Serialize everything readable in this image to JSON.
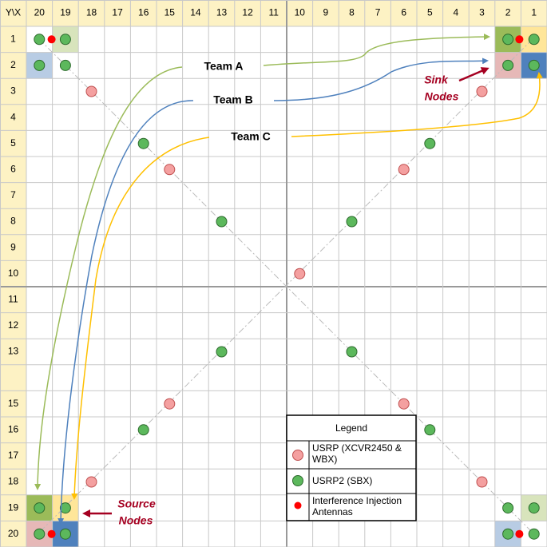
{
  "grid": {
    "corner": "Y\\X",
    "columns": [
      "20",
      "19",
      "18",
      "17",
      "16",
      "15",
      "14",
      "13",
      "12",
      "11",
      "10",
      "9",
      "8",
      "7",
      "6",
      "5",
      "4",
      "3",
      "2",
      "1"
    ],
    "rows": [
      "1",
      "2",
      "3",
      "4",
      "5",
      "6",
      "7",
      "8",
      "9",
      "10",
      "11",
      "12",
      "13",
      null,
      "15",
      "16",
      "17",
      "18",
      "19",
      "20"
    ]
  },
  "teams": [
    "Team A",
    "Team B",
    "Team C"
  ],
  "annotations": {
    "sink": [
      "Sink",
      "Nodes"
    ],
    "source": [
      "Source",
      "Nodes"
    ]
  },
  "legend": {
    "title": "Legend",
    "items": [
      "USRP (XCVR2450 & WBX)",
      "USRP2 (SBX)",
      "Interference Injection Antennas"
    ]
  }
}
